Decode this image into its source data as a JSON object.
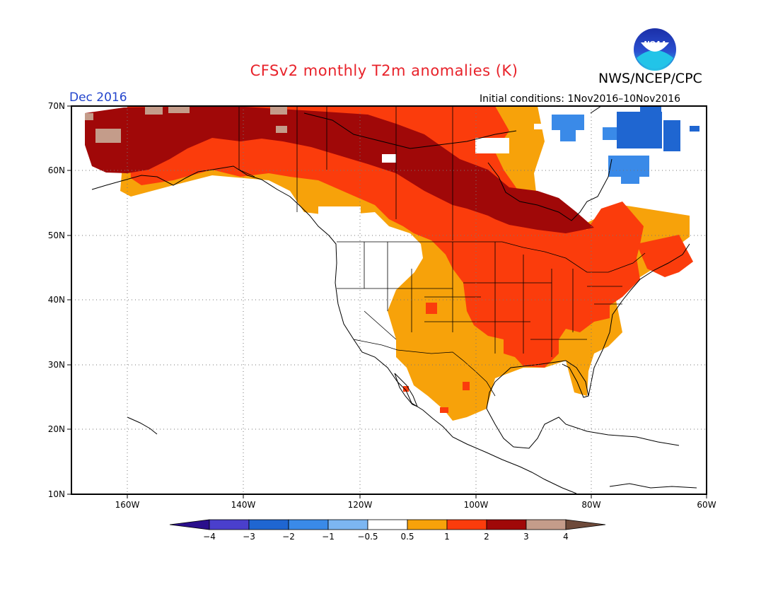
{
  "title": "CFSv2 monthly T2m anomalies (K)",
  "agency": "NWS/NCEP/CPC",
  "logo_text": "NOAA",
  "forecast_month": "Dec 2016",
  "initial_conditions": "Initial conditions: 1Nov2016–10Nov2016",
  "lat_labels": [
    "70N",
    "60N",
    "50N",
    "40N",
    "30N",
    "20N",
    "10N"
  ],
  "lon_labels": [
    "160W",
    "140W",
    "120W",
    "100W",
    "80W",
    "60W"
  ],
  "colorbar": {
    "labels": [
      "−4",
      "−3",
      "−2",
      "−1",
      "−0.5",
      "0.5",
      "1",
      "2",
      "3",
      "4"
    ],
    "colors": [
      "#2a0f8c",
      "#4a3fcc",
      "#1f66d1",
      "#3a8ae8",
      "#7cb6f2",
      "#ffffff",
      "#f7a20a",
      "#fb3c0c",
      "#a00808",
      "#c49c8a",
      "#6e4a3a"
    ]
  }
}
